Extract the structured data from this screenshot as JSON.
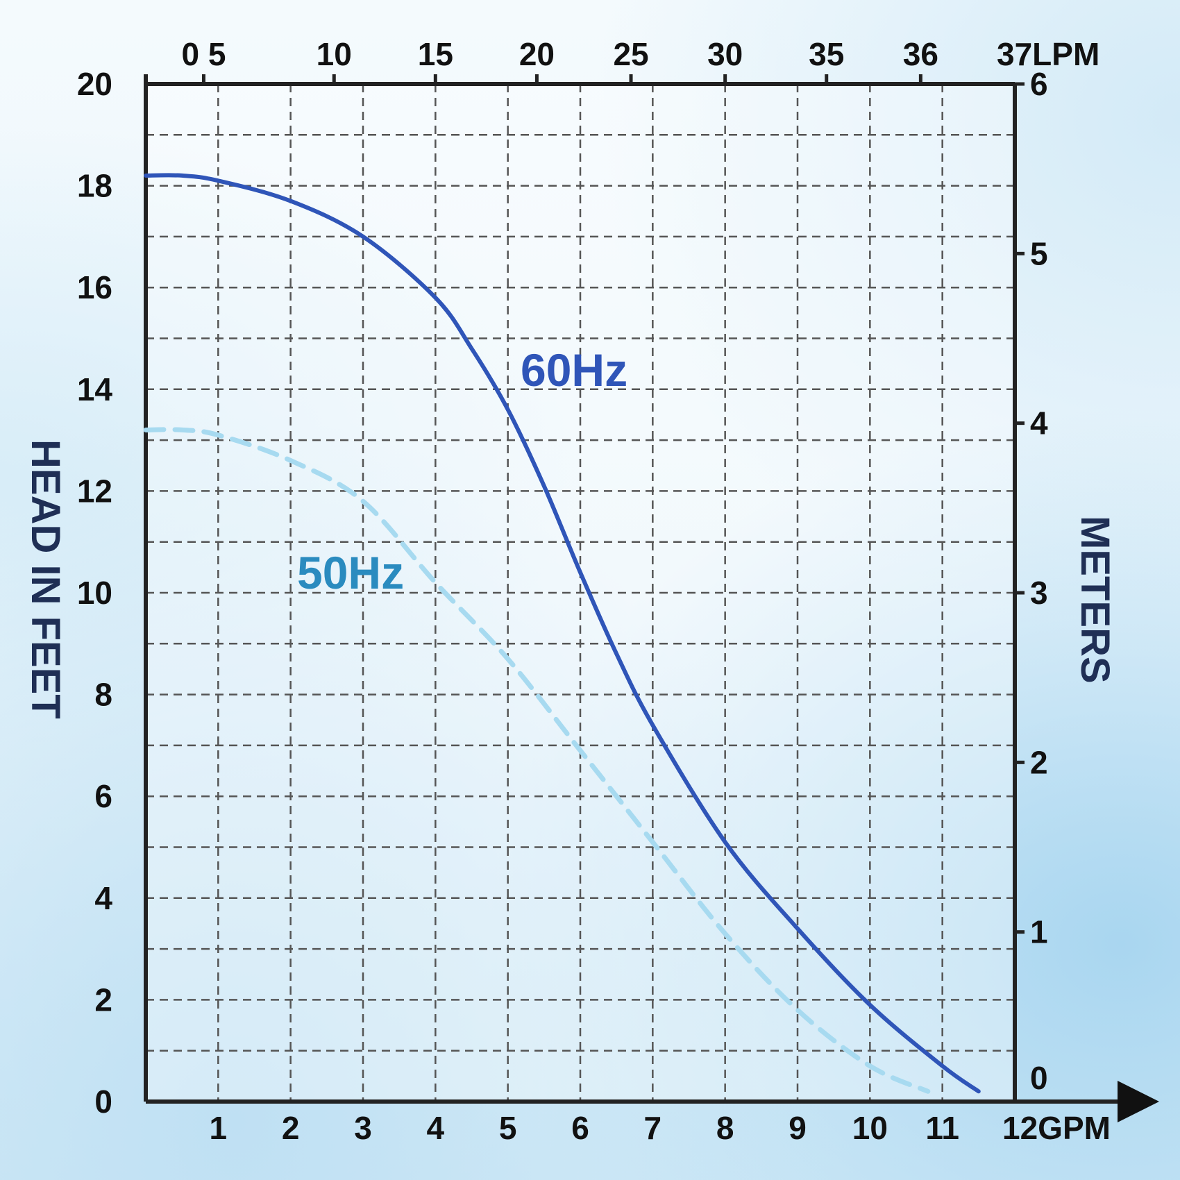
{
  "chart_data": {
    "type": "line",
    "title": "",
    "xlabel": "GPM",
    "x2label": "LPM",
    "ylabel": "HEAD IN FEET",
    "y2label": "METERS",
    "xlim": [
      0,
      12
    ],
    "ylim": [
      0,
      20
    ],
    "y2lim": [
      0,
      6
    ],
    "grid": true,
    "x_ticks": [
      1,
      2,
      3,
      4,
      5,
      6,
      7,
      8,
      9,
      10,
      11
    ],
    "x_tick_labels": [
      "1",
      "2",
      "3",
      "4",
      "5",
      "6",
      "7",
      "8",
      "9",
      "10",
      "11"
    ],
    "x_end_label": "12GPM",
    "y_ticks": [
      0,
      2,
      4,
      6,
      8,
      10,
      12,
      14,
      16,
      18,
      20
    ],
    "y_tick_labels": [
      "0",
      "2",
      "4",
      "6",
      "8",
      "10",
      "12",
      "14",
      "16",
      "18",
      "20"
    ],
    "y2_ticks": [
      0,
      1,
      2,
      3,
      4,
      5,
      6
    ],
    "y2_tick_labels": [
      "0",
      "1",
      "2",
      "3",
      "4",
      "5",
      "6"
    ],
    "top_ticks_gpm": [
      0.8,
      2.6,
      4.0,
      5.4,
      6.7,
      8.0,
      9.4,
      10.7,
      12.0
    ],
    "top_tick_labels": [
      "0 5",
      "10",
      "15",
      "20",
      "25",
      "30",
      "35",
      "36",
      "37LPM"
    ],
    "series": [
      {
        "name": "60Hz",
        "color": "#2f55b8",
        "style": "solid",
        "x": [
          0,
          0.5,
          1,
          2,
          3,
          4,
          4.5,
          5,
          5.5,
          6,
          6.5,
          7,
          8,
          9,
          10,
          11,
          11.5
        ],
        "y": [
          18.2,
          18.2,
          18.1,
          17.7,
          17.0,
          15.8,
          14.8,
          13.6,
          12.1,
          10.4,
          8.8,
          7.4,
          5.1,
          3.4,
          1.9,
          0.7,
          0.2
        ]
      },
      {
        "name": "50Hz",
        "color": "#a7daf0",
        "style": "dashed",
        "x": [
          0,
          0.5,
          1,
          2,
          3,
          4,
          5,
          6,
          7,
          8,
          9,
          10,
          10.8
        ],
        "y": [
          13.2,
          13.2,
          13.1,
          12.6,
          11.8,
          10.2,
          8.7,
          6.9,
          5.1,
          3.3,
          1.8,
          0.7,
          0.2
        ]
      }
    ]
  }
}
